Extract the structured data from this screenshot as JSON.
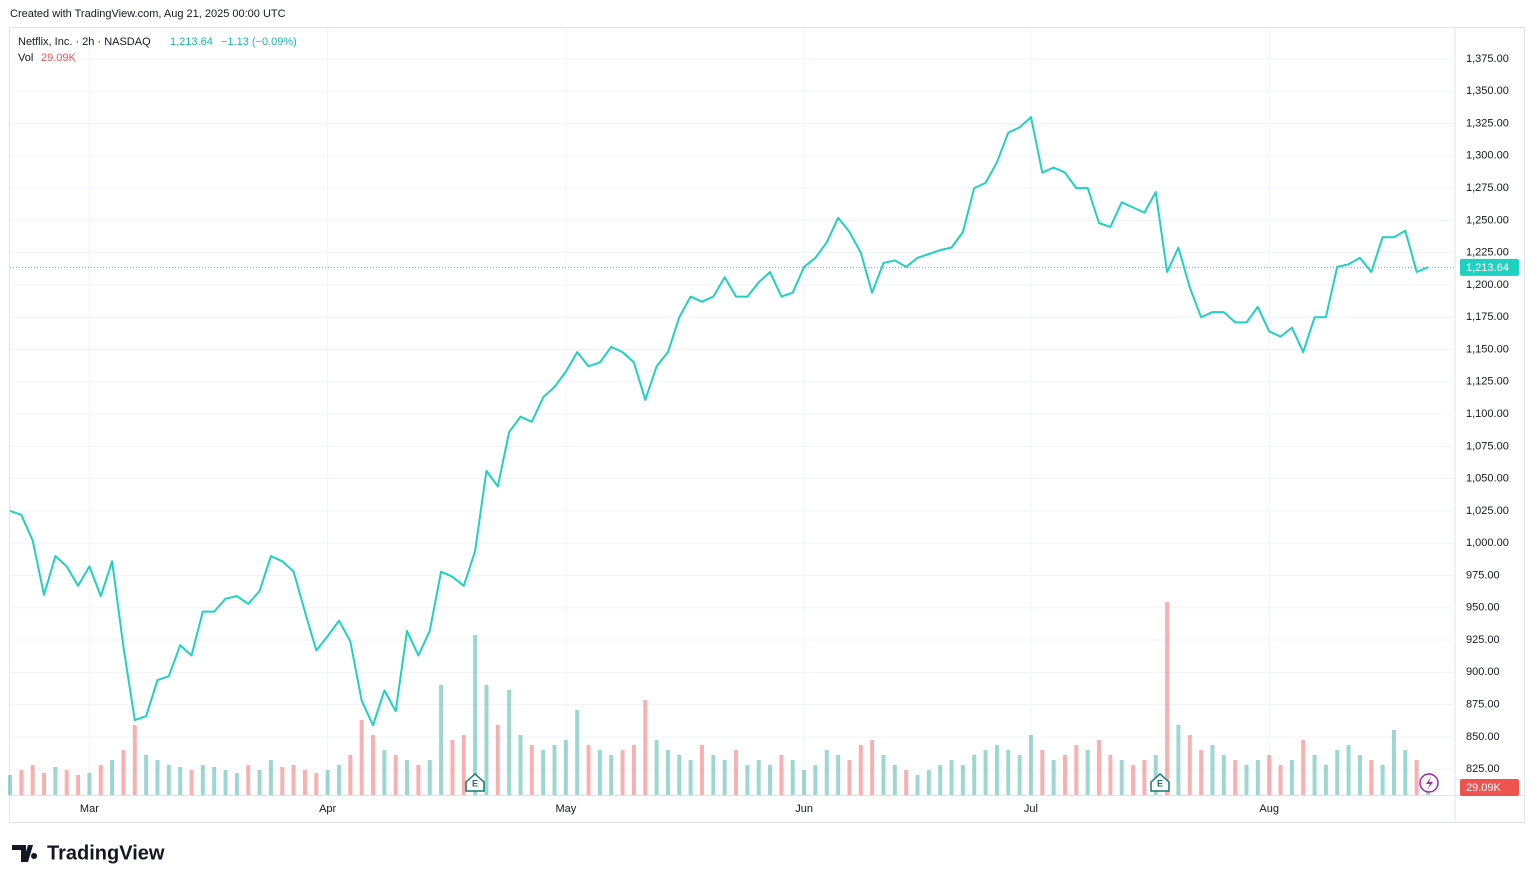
{
  "watermark": "Created with TradingView.com, Aug 21, 2025 00:00 UTC",
  "brand": "TradingView",
  "chart_data": {
    "type": "line",
    "title": "Netflix, Inc. · 2h · NASDAQ",
    "last_label": "1,213.64",
    "change": "−1.13 (−0.09%)",
    "color": "#1fd1c1",
    "grid": true,
    "categories": [
      null,
      null,
      null,
      null,
      null,
      null,
      null,
      "Mar",
      null,
      null,
      null,
      null,
      null,
      null,
      null,
      null,
      null,
      null,
      null,
      null,
      null,
      null,
      null,
      null,
      null,
      null,
      null,
      null,
      "Apr",
      null,
      null,
      null,
      null,
      null,
      null,
      null,
      null,
      null,
      null,
      null,
      null,
      null,
      null,
      null,
      null,
      null,
      null,
      null,
      null,
      "May",
      null,
      null,
      null,
      null,
      null,
      null,
      null,
      null,
      null,
      null,
      null,
      null,
      null,
      null,
      null,
      null,
      null,
      null,
      null,
      null,
      "Jun",
      null,
      null,
      null,
      null,
      null,
      null,
      null,
      null,
      null,
      null,
      null,
      null,
      null,
      null,
      null,
      null,
      null,
      null,
      null,
      "Jul",
      null,
      null,
      null,
      null,
      null,
      null,
      null,
      null,
      null,
      null,
      null,
      null,
      null,
      null,
      null,
      null,
      null,
      null,
      null,
      null,
      "Aug",
      null,
      null,
      null,
      null,
      null,
      null,
      null,
      null,
      null,
      null,
      null,
      null,
      null,
      null
    ],
    "values": [
      1025,
      1022,
      1002,
      960,
      990,
      982,
      967,
      982,
      959,
      986,
      920,
      863,
      866,
      894,
      897,
      921,
      913,
      947,
      947,
      957,
      959,
      953,
      963,
      990,
      986,
      978,
      947,
      917,
      928,
      940,
      924,
      878,
      859,
      886,
      870,
      932,
      913,
      932,
      978,
      974,
      967,
      994,
      1056,
      1044,
      1086,
      1098,
      1094,
      1113,
      1121,
      1133,
      1148,
      1137,
      1140,
      1152,
      1148,
      1140,
      1111,
      1137,
      1148,
      1175,
      1191,
      1187,
      1191,
      1206,
      1191,
      1191,
      1202,
      1210,
      1191,
      1194,
      1214,
      1221,
      1233,
      1252,
      1241,
      1225,
      1194,
      1217,
      1219,
      1214,
      1221,
      1224,
      1227,
      1229,
      1241,
      1275,
      1279,
      1295,
      1318,
      1322,
      1330,
      1287,
      1291,
      1287,
      1275,
      1275,
      1248,
      1245,
      1264,
      1260,
      1256,
      1272,
      1210,
      1229,
      1198,
      1175,
      1179,
      1179,
      1171,
      1171,
      1183,
      1164,
      1160,
      1167,
      1148,
      1175,
      1175,
      1214,
      1216,
      1221,
      1210,
      1237,
      1237,
      1242,
      1210,
      1213.64
    ],
    "volume": {
      "name": "Vol",
      "last_label": "29.09K",
      "up_color": "#26a69a",
      "down_color": "#ef5350",
      "values": [
        40000,
        50000,
        60000,
        44000,
        56000,
        50000,
        40000,
        44000,
        60000,
        70000,
        90000,
        140000,
        80000,
        70000,
        60000,
        56000,
        50000,
        60000,
        56000,
        50000,
        44000,
        60000,
        50000,
        70000,
        56000,
        60000,
        50000,
        44000,
        50000,
        60000,
        80000,
        150000,
        120000,
        90000,
        80000,
        70000,
        60000,
        70000,
        220000,
        110000,
        120000,
        320000,
        220000,
        140000,
        210000,
        120000,
        100000,
        90000,
        100000,
        110000,
        170000,
        100000,
        90000,
        80000,
        90000,
        100000,
        190000,
        110000,
        90000,
        80000,
        70000,
        100000,
        80000,
        70000,
        90000,
        60000,
        70000,
        60000,
        80000,
        70000,
        50000,
        60000,
        90000,
        80000,
        70000,
        100000,
        110000,
        80000,
        60000,
        50000,
        40000,
        50000,
        60000,
        70000,
        60000,
        80000,
        90000,
        100000,
        90000,
        80000,
        120000,
        90000,
        70000,
        80000,
        100000,
        90000,
        110000,
        80000,
        70000,
        60000,
        70000,
        80000,
        386000,
        140000,
        120000,
        90000,
        100000,
        80000,
        70000,
        60000,
        70000,
        80000,
        60000,
        70000,
        110000,
        80000,
        60000,
        90000,
        100000,
        80000,
        70000,
        60000,
        130000,
        90000,
        70000,
        29090
      ]
    },
    "ylim": [
      805,
      1399
    ],
    "yticks": [
      {
        "value": 825,
        "label": "825.00"
      },
      {
        "value": 850,
        "label": "850.00"
      },
      {
        "value": 875,
        "label": "875.00"
      },
      {
        "value": 900,
        "label": "900.00"
      },
      {
        "value": 925,
        "label": "925.00"
      },
      {
        "value": 950,
        "label": "950.00"
      },
      {
        "value": 975,
        "label": "975.00"
      },
      {
        "value": 1000,
        "label": "1,000.00"
      },
      {
        "value": 1025,
        "label": "1,025.00"
      },
      {
        "value": 1050,
        "label": "1,050.00"
      },
      {
        "value": 1075,
        "label": "1,075.00"
      },
      {
        "value": 1100,
        "label": "1,100.00"
      },
      {
        "value": 1125,
        "label": "1,125.00"
      },
      {
        "value": 1150,
        "label": "1,150.00"
      },
      {
        "value": 1175,
        "label": "1,175.00"
      },
      {
        "value": 1200,
        "label": "1,200.00"
      },
      {
        "value": 1225,
        "label": "1,225.00"
      },
      {
        "value": 1250,
        "label": "1,250.00"
      },
      {
        "value": 1275,
        "label": "1,275.00"
      },
      {
        "value": 1300,
        "label": "1,300.00"
      },
      {
        "value": 1325,
        "label": "1,325.00"
      },
      {
        "value": 1350,
        "label": "1,350.00"
      },
      {
        "value": 1375,
        "label": "1,375.00"
      }
    ]
  }
}
